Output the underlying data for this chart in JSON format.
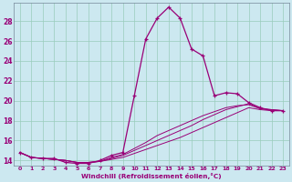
{
  "xlabel": "Windchill (Refroidissement éolien,°C)",
  "bg_color": "#cce8f0",
  "grid_color": "#99ccbb",
  "line_color": "#990077",
  "xlim": [
    -0.5,
    23.5
  ],
  "ylim": [
    13.5,
    29.8
  ],
  "yticks": [
    14,
    16,
    18,
    20,
    22,
    24,
    26,
    28
  ],
  "xticks": [
    0,
    1,
    2,
    3,
    4,
    5,
    6,
    7,
    8,
    9,
    10,
    11,
    12,
    13,
    14,
    15,
    16,
    17,
    18,
    19,
    20,
    21,
    22,
    23
  ],
  "series1_x": [
    0,
    1,
    2,
    3,
    4,
    5,
    6,
    7,
    8,
    9,
    10,
    11,
    12,
    13,
    14,
    15,
    16,
    17,
    18,
    19,
    20,
    21,
    22,
    23
  ],
  "series1_y": [
    14.8,
    14.3,
    14.2,
    14.2,
    13.8,
    13.7,
    13.7,
    14.0,
    14.5,
    14.8,
    20.5,
    26.2,
    28.3,
    29.4,
    28.3,
    25.2,
    24.5,
    20.5,
    20.8,
    20.7,
    19.8,
    19.3,
    19.0,
    19.0
  ],
  "series2_x": [
    0,
    1,
    2,
    3,
    4,
    5,
    6,
    7,
    8,
    9,
    10,
    11,
    12,
    13,
    14,
    15,
    16,
    17,
    18,
    19,
    20,
    21,
    22,
    23
  ],
  "series2_y": [
    14.8,
    14.3,
    14.2,
    14.1,
    14.0,
    13.8,
    13.8,
    13.9,
    14.1,
    14.3,
    14.7,
    15.1,
    15.5,
    15.9,
    16.3,
    16.8,
    17.3,
    17.8,
    18.3,
    18.8,
    19.3,
    19.1,
    19.0,
    19.0
  ],
  "series3_x": [
    0,
    1,
    2,
    3,
    4,
    5,
    6,
    7,
    8,
    9,
    10,
    11,
    12,
    13,
    14,
    15,
    16,
    17,
    18,
    19,
    20,
    21,
    22,
    23
  ],
  "series3_y": [
    14.8,
    14.3,
    14.2,
    14.1,
    14.0,
    13.8,
    13.8,
    13.9,
    14.2,
    14.5,
    15.0,
    15.5,
    16.0,
    16.5,
    17.0,
    17.5,
    18.1,
    18.6,
    19.1,
    19.4,
    19.7,
    19.2,
    19.1,
    19.0
  ],
  "series4_x": [
    0,
    1,
    2,
    3,
    4,
    5,
    6,
    7,
    8,
    9,
    10,
    11,
    12,
    13,
    14,
    15,
    16,
    17,
    18,
    19,
    20,
    21,
    22,
    23
  ],
  "series4_y": [
    14.8,
    14.3,
    14.2,
    14.1,
    14.0,
    13.8,
    13.8,
    13.9,
    14.3,
    14.6,
    15.2,
    15.8,
    16.5,
    17.0,
    17.5,
    18.0,
    18.5,
    18.9,
    19.3,
    19.5,
    19.6,
    19.2,
    19.1,
    19.0
  ]
}
